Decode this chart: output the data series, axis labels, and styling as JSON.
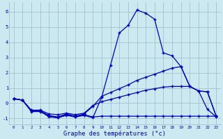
{
  "hours": [
    0,
    1,
    2,
    3,
    4,
    5,
    6,
    7,
    8,
    9,
    10,
    11,
    12,
    13,
    14,
    15,
    16,
    17,
    18,
    19,
    20,
    21,
    22,
    23
  ],
  "line_peak": [
    0.3,
    0.2,
    -0.5,
    -0.5,
    -0.9,
    -0.95,
    -0.8,
    -0.9,
    -0.8,
    -0.95,
    0.4,
    2.5,
    4.6,
    5.1,
    6.1,
    5.9,
    5.5,
    3.3,
    3.1,
    2.4,
    1.1,
    0.8,
    -0.4,
    -0.9
  ],
  "line_flat": [
    0.3,
    0.2,
    -0.55,
    -0.55,
    -0.85,
    -0.95,
    -0.75,
    -0.9,
    -0.75,
    -0.9,
    -0.85,
    -0.85,
    -0.85,
    -0.85,
    -0.85,
    -0.85,
    -0.85,
    -0.85,
    -0.85,
    -0.85,
    -0.85,
    -0.85,
    -0.85,
    -0.85
  ],
  "line_diag1": [
    0.3,
    0.2,
    -0.5,
    -0.5,
    -0.8,
    -0.9,
    -0.7,
    -0.85,
    -0.7,
    -0.2,
    0.45,
    0.7,
    0.95,
    1.2,
    1.5,
    1.7,
    1.9,
    2.1,
    2.3,
    2.4,
    1.1,
    0.8,
    0.75,
    -0.85
  ],
  "line_diag2": [
    0.3,
    0.2,
    -0.45,
    -0.45,
    -0.7,
    -0.75,
    -0.65,
    -0.75,
    -0.65,
    -0.15,
    0.1,
    0.25,
    0.4,
    0.55,
    0.7,
    0.85,
    0.95,
    1.05,
    1.1,
    1.1,
    1.1,
    0.8,
    0.75,
    -0.85
  ],
  "ylim": [
    -1.4,
    6.6
  ],
  "yticks": [
    -1,
    0,
    1,
    2,
    3,
    4,
    5,
    6
  ],
  "xlabel": "Graphe des températures (°c)",
  "line_color": "#0000bb",
  "bg_color": "#cce8f0",
  "grid_color": "#99bbcc"
}
